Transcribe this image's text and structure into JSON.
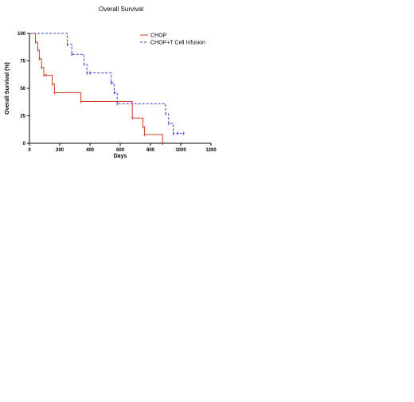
{
  "chart_data": {
    "type": "line",
    "title": "Overall  Survival",
    "xlabel": "Days",
    "ylabel": "Overall Survival (%)",
    "xlim": [
      0,
      1200
    ],
    "ylim": [
      0,
      100
    ],
    "xticks": [
      "0",
      "200",
      "400",
      "600",
      "800",
      "1000",
      "1200"
    ],
    "xtick_values": [
      0,
      200,
      400,
      600,
      800,
      1000,
      1200
    ],
    "yticks": [
      "0",
      "25",
      "50",
      "75",
      "100"
    ],
    "ytick_values": [
      0,
      25,
      50,
      75,
      100
    ],
    "grid": false,
    "legend": {
      "position": "top-right"
    },
    "series": [
      {
        "name": "CHOP",
        "color": "#d23c28",
        "style": "solid",
        "step": true,
        "x": [
          0,
          40,
          55,
          65,
          80,
          95,
          110,
          150,
          165,
          340,
          680,
          750,
          760,
          880
        ],
        "y": [
          100,
          92,
          85,
          77,
          69,
          62,
          62,
          54,
          46,
          38,
          23,
          15,
          8,
          0
        ]
      },
      {
        "name": "CHOP+T Cell Infusion",
        "color": "#3c3cd2",
        "style": "dashed",
        "step": true,
        "x": [
          0,
          250,
          280,
          360,
          380,
          400,
          540,
          560,
          580,
          900,
          920,
          950,
          980,
          1020
        ],
        "y": [
          100,
          90,
          81,
          72,
          64,
          64,
          55,
          46,
          36,
          27,
          18,
          9,
          9,
          9
        ]
      }
    ]
  }
}
